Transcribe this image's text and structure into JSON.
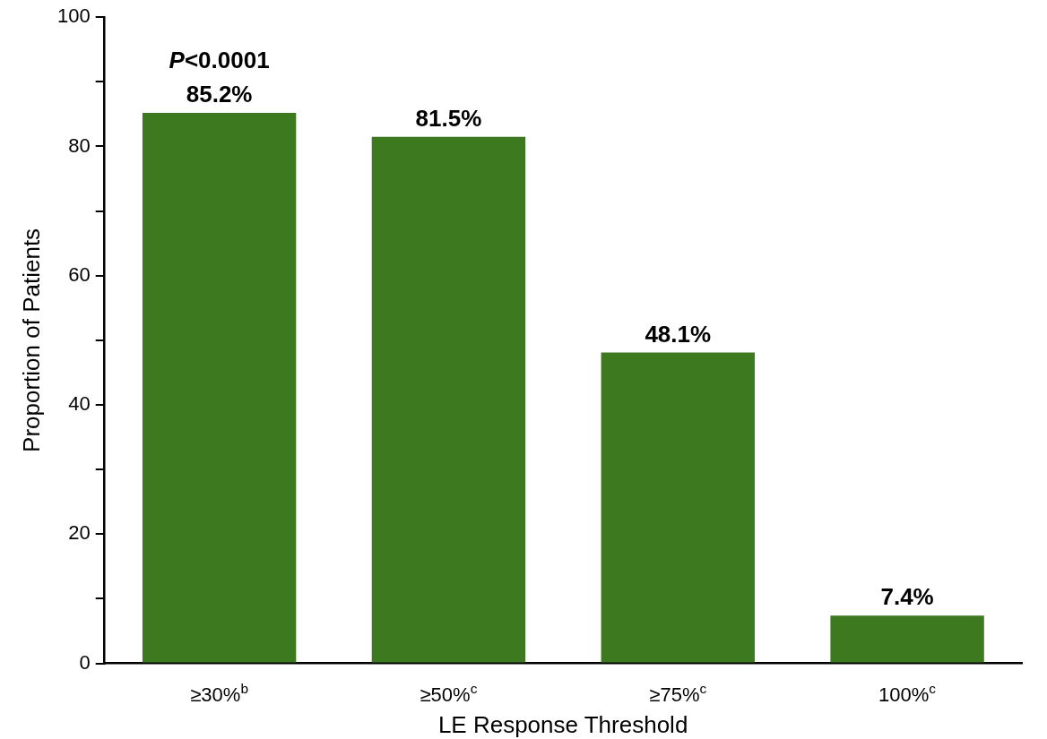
{
  "chart_data": {
    "type": "bar",
    "xlabel": "LE Response Threshold",
    "ylabel": "Proportion of Patients",
    "categories": [
      "≥30%$^{b}$",
      "≥50%$^{c}$",
      "≥75%$^{c}$",
      "100%$^{c}$"
    ],
    "values": [
      85.2,
      81.5,
      48.1,
      7.4
    ],
    "color": "#3d7a1f",
    "value_labels": [
      "85.2%",
      "81.5%",
      "48.1%",
      "7.4%"
    ],
    "annotations": [
      "P<0.0001"
    ],
    "ylim": [
      0,
      100
    ],
    "yticks": [
      0,
      {
        "value": 10,
        "label": null
      },
      20,
      {
        "value": 30,
        "label": null
      },
      40,
      {
        "value": 50,
        "label": null
      },
      60,
      {
        "value": 70,
        "label": null
      },
      80,
      {
        "value": 90,
        "label": null
      },
      100
    ],
    "grid": false,
    "legend": false
  }
}
